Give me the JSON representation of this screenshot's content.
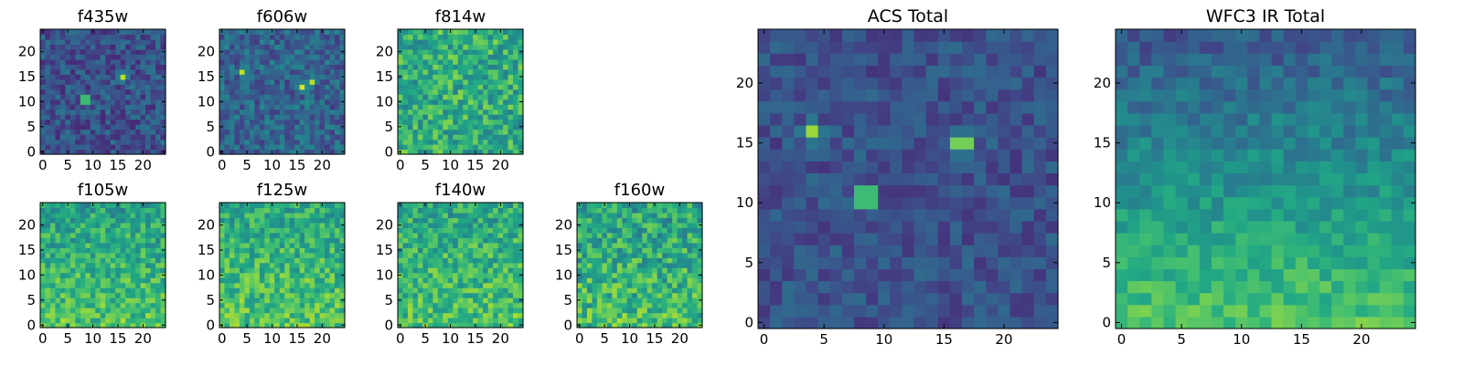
{
  "chart_data": [
    {
      "type": "heatmap",
      "title": "f435w",
      "colormap": "viridis",
      "grid_size": 25,
      "x_ticks": [
        0,
        5,
        10,
        15,
        20
      ],
      "y_ticks": [
        0,
        5,
        10,
        15,
        20
      ],
      "background_level": 0.25,
      "noise": 0.14,
      "hotspots": [
        {
          "x": 8.5,
          "y": 10.5,
          "value": 1.0
        },
        {
          "x": 16,
          "y": 15,
          "value": 0.9
        }
      ]
    },
    {
      "type": "heatmap",
      "title": "f606w",
      "colormap": "viridis",
      "grid_size": 25,
      "x_ticks": [
        0,
        5,
        10,
        15,
        20
      ],
      "y_ticks": [
        0,
        5,
        10,
        15,
        20
      ],
      "background_level": 0.32,
      "noise": 0.15,
      "hotspots": [
        {
          "x": 4,
          "y": 16,
          "value": 0.9
        },
        {
          "x": 16,
          "y": 13,
          "value": 0.95
        },
        {
          "x": 18,
          "y": 14,
          "value": 0.9
        }
      ]
    },
    {
      "type": "heatmap",
      "title": "f814w",
      "colormap": "viridis",
      "grid_size": 25,
      "x_ticks": [
        0,
        5,
        10,
        15,
        20
      ],
      "y_ticks": [
        0,
        5,
        10,
        15,
        20
      ],
      "background_level": 0.62,
      "noise": 0.2,
      "hotspots": []
    },
    {
      "type": "heatmap",
      "title": "f105w",
      "colormap": "viridis",
      "grid_size": 25,
      "x_ticks": [
        0,
        5,
        10,
        15,
        20
      ],
      "y_ticks": [
        0,
        5,
        10,
        15,
        20
      ],
      "background_level": 0.64,
      "noise": 0.17,
      "bottom_gradient": 0.15,
      "hotspots": []
    },
    {
      "type": "heatmap",
      "title": "f125w",
      "colormap": "viridis",
      "grid_size": 25,
      "x_ticks": [
        0,
        5,
        10,
        15,
        20
      ],
      "y_ticks": [
        0,
        5,
        10,
        15,
        20
      ],
      "background_level": 0.66,
      "noise": 0.17,
      "bottom_gradient": 0.12,
      "hotspots": []
    },
    {
      "type": "heatmap",
      "title": "f140w",
      "colormap": "viridis",
      "grid_size": 25,
      "x_ticks": [
        0,
        5,
        10,
        15,
        20
      ],
      "y_ticks": [
        0,
        5,
        10,
        15,
        20
      ],
      "background_level": 0.65,
      "noise": 0.18,
      "bottom_gradient": 0.12,
      "hotspots": []
    },
    {
      "type": "heatmap",
      "title": "f160w",
      "colormap": "viridis",
      "grid_size": 25,
      "x_ticks": [
        0,
        5,
        10,
        15,
        20
      ],
      "y_ticks": [
        0,
        5,
        10,
        15,
        20
      ],
      "background_level": 0.63,
      "noise": 0.2,
      "bottom_gradient": 0.12,
      "hotspots": []
    },
    {
      "type": "heatmap",
      "title": "ACS Total",
      "colormap": "viridis",
      "grid_size": 25,
      "x_ticks": [
        0,
        5,
        10,
        15,
        20
      ],
      "y_ticks": [
        0,
        5,
        10,
        15,
        20
      ],
      "background_level": 0.25,
      "noise": 0.1,
      "hotspots": [
        {
          "x": 8.5,
          "y": 10.5,
          "value": 1.0
        },
        {
          "x": 16.5,
          "y": 15,
          "value": 0.95
        },
        {
          "x": 4,
          "y": 16,
          "value": 0.85
        }
      ]
    },
    {
      "type": "heatmap",
      "title": "WFC3 IR Total",
      "colormap": "viridis",
      "grid_size": 25,
      "x_ticks": [
        0,
        5,
        10,
        15,
        20
      ],
      "y_ticks": [
        0,
        5,
        10,
        15,
        20
      ],
      "background_level": 0.6,
      "noise": 0.1,
      "bottom_gradient": 0.25,
      "top_gradient": -0.2,
      "hotspots": []
    }
  ]
}
